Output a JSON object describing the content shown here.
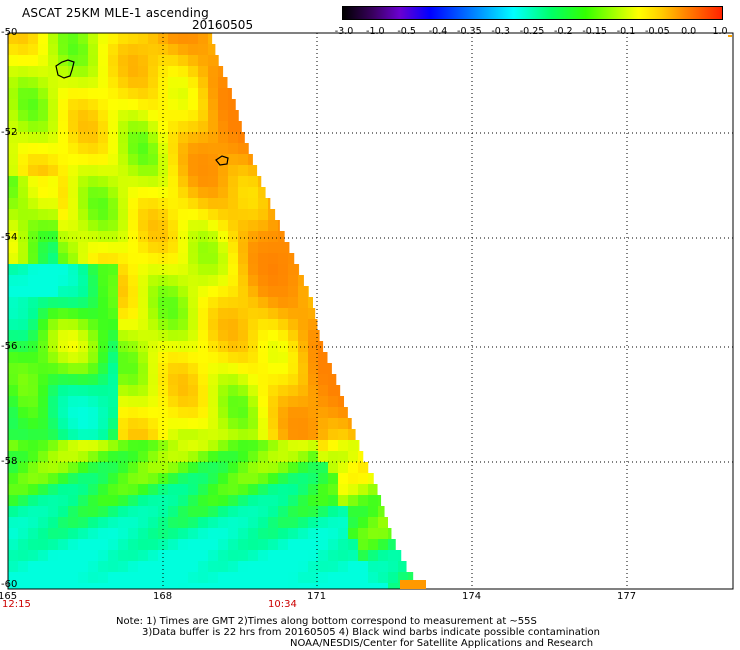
{
  "header": {
    "title": "ASCAT 25KM MLE-1 ascending",
    "date": "20160505"
  },
  "colorbar": {
    "labels": [
      "-3.0",
      "-1.0",
      "-0.5",
      "-0.4",
      "-0.35",
      "-0.3",
      "-0.25",
      "-0.2",
      "-0.15",
      "-0.1",
      "-0.05",
      "0.0",
      "1.0"
    ]
  },
  "axes": {
    "y_ticks": [
      "-50",
      "-52",
      "-54",
      "-56",
      "-58",
      "-60"
    ],
    "x_ticks": [
      "165",
      "168",
      "171",
      "174",
      "177"
    ]
  },
  "times": {
    "left": "12:15",
    "middle": "10:34"
  },
  "notes": {
    "line1": "Note: 1) Times are GMT 2)Times along bottom correspond to measurement at ~55S",
    "line2": "3)Data buffer is 22 hrs from 20160505 4) Black wind barbs indicate possible contamination",
    "line3": "NOAA/NESDIS/Center for Satellite Applications and Research"
  },
  "colors": {
    "title_text": "#000000",
    "time_text": "#cc0000",
    "grid": "#000000",
    "high": "#ff8800",
    "mid": "#ffcc00",
    "low": "#00ffdd"
  }
}
